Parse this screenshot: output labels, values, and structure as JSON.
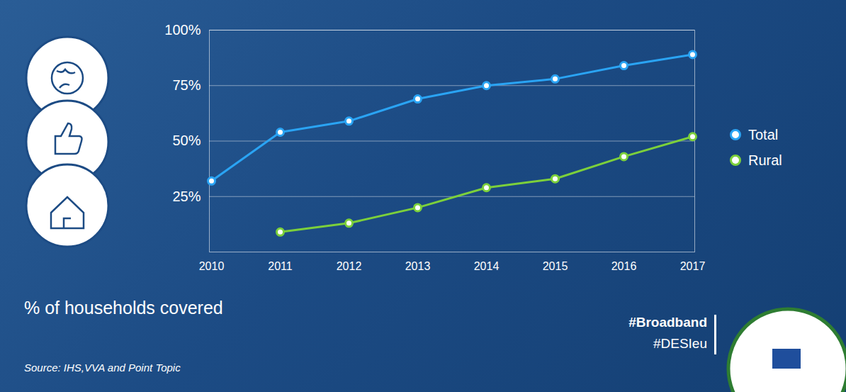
{
  "chart_data": {
    "type": "line",
    "title": "% of households covered",
    "source": "Source: IHS,VVA and Point Topic",
    "annotations": [
      "#Broadband",
      "#DESIeu"
    ],
    "categories": [
      "2010",
      "2011",
      "2012",
      "2013",
      "2014",
      "2015",
      "2016",
      "2017"
    ],
    "series": [
      {
        "name": "Total",
        "color": "#2aa4f4",
        "marker": "circle",
        "values": [
          32,
          54,
          59,
          69,
          75,
          78,
          84,
          89
        ]
      },
      {
        "name": "Rural",
        "color": "#7cd03b",
        "marker": "circle",
        "values": [
          null,
          9,
          13,
          20,
          29,
          33,
          43,
          52
        ]
      }
    ],
    "ylim": [
      0,
      100
    ],
    "yticks": [
      {
        "value": 25,
        "label": "25%"
      },
      {
        "value": 50,
        "label": "50%"
      },
      {
        "value": 75,
        "label": "75%"
      },
      {
        "value": 100,
        "label": "100%"
      }
    ],
    "grid": true,
    "legend": "right"
  }
}
